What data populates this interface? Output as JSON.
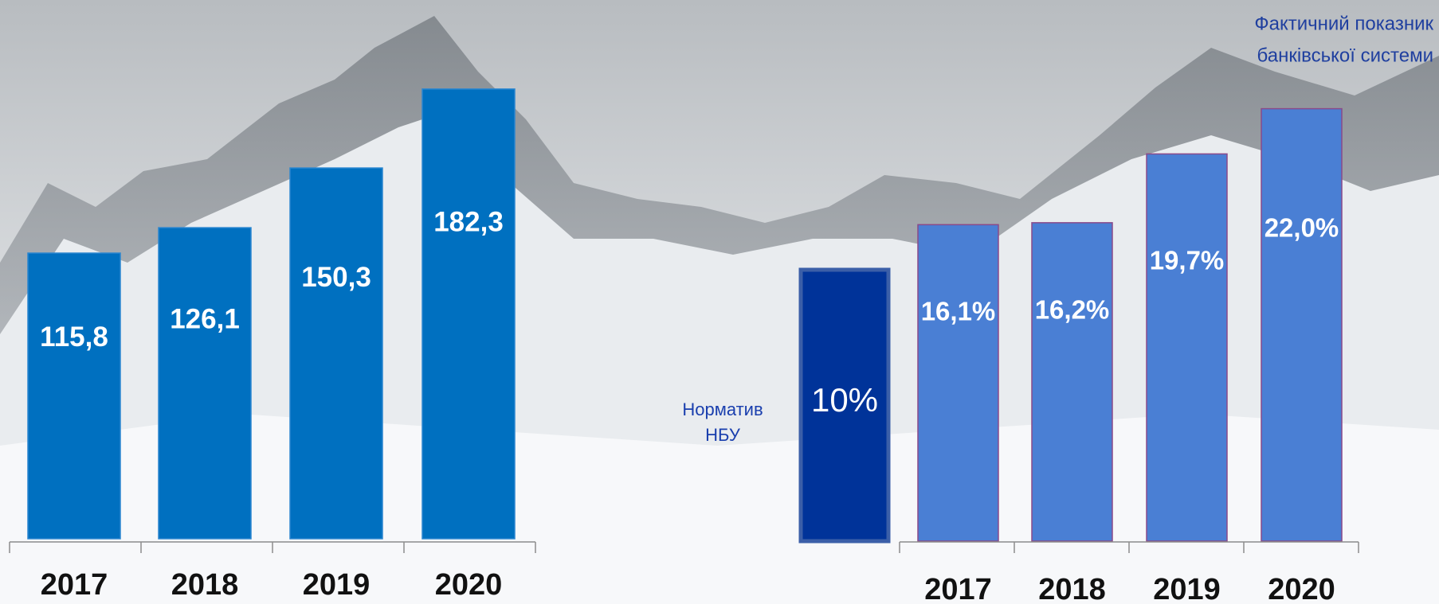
{
  "chart_data": [
    {
      "type": "bar",
      "categories": [
        "2017",
        "2018",
        "2019",
        "2020"
      ],
      "values": [
        115.8,
        126.1,
        150.3,
        182.3
      ],
      "value_labels": [
        "115,8",
        "126,1",
        "150,3",
        "182,3"
      ],
      "color": "#0070c0"
    },
    {
      "type": "bar",
      "annotation": [
        "Норматив",
        "НБУ"
      ],
      "categories": [
        null
      ],
      "values": [
        10
      ],
      "value_labels": [
        "10%"
      ],
      "color": "#003399"
    },
    {
      "type": "bar",
      "annotation": [
        "Фактичний показник",
        "банківської системи"
      ],
      "categories": [
        "2017",
        "2018",
        "2019",
        "2020"
      ],
      "values": [
        16.1,
        16.2,
        19.7,
        22.0
      ],
      "value_labels": [
        "16,1%",
        "16,2%",
        "19,7%",
        "22,0%"
      ],
      "color": "#4a7fd4"
    }
  ]
}
